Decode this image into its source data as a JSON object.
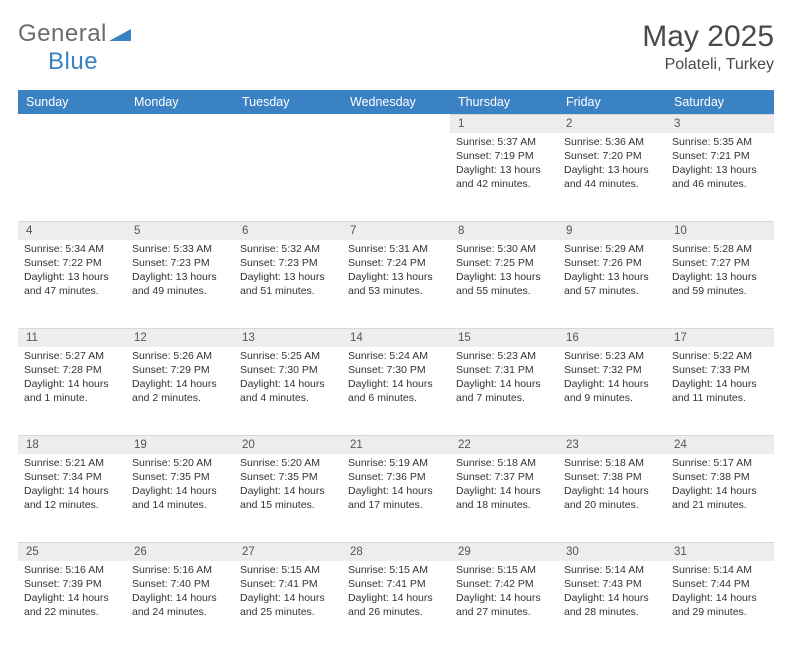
{
  "brand": {
    "first": "General",
    "second": "Blue"
  },
  "title": "May 2025",
  "location": "Polateli, Turkey",
  "columns": [
    "Sunday",
    "Monday",
    "Tuesday",
    "Wednesday",
    "Thursday",
    "Friday",
    "Saturday"
  ],
  "colors": {
    "header_bg": "#3b82c4",
    "header_text": "#ffffff",
    "daynum_bg": "#ededed",
    "text": "#333333",
    "logo_gray": "#6b6b6b",
    "logo_blue": "#3b82c4"
  },
  "weeks": [
    [
      null,
      null,
      null,
      null,
      {
        "n": "1",
        "sr": "5:37 AM",
        "ss": "7:19 PM",
        "dl": "13 hours and 42 minutes."
      },
      {
        "n": "2",
        "sr": "5:36 AM",
        "ss": "7:20 PM",
        "dl": "13 hours and 44 minutes."
      },
      {
        "n": "3",
        "sr": "5:35 AM",
        "ss": "7:21 PM",
        "dl": "13 hours and 46 minutes."
      }
    ],
    [
      {
        "n": "4",
        "sr": "5:34 AM",
        "ss": "7:22 PM",
        "dl": "13 hours and 47 minutes."
      },
      {
        "n": "5",
        "sr": "5:33 AM",
        "ss": "7:23 PM",
        "dl": "13 hours and 49 minutes."
      },
      {
        "n": "6",
        "sr": "5:32 AM",
        "ss": "7:23 PM",
        "dl": "13 hours and 51 minutes."
      },
      {
        "n": "7",
        "sr": "5:31 AM",
        "ss": "7:24 PM",
        "dl": "13 hours and 53 minutes."
      },
      {
        "n": "8",
        "sr": "5:30 AM",
        "ss": "7:25 PM",
        "dl": "13 hours and 55 minutes."
      },
      {
        "n": "9",
        "sr": "5:29 AM",
        "ss": "7:26 PM",
        "dl": "13 hours and 57 minutes."
      },
      {
        "n": "10",
        "sr": "5:28 AM",
        "ss": "7:27 PM",
        "dl": "13 hours and 59 minutes."
      }
    ],
    [
      {
        "n": "11",
        "sr": "5:27 AM",
        "ss": "7:28 PM",
        "dl": "14 hours and 1 minute."
      },
      {
        "n": "12",
        "sr": "5:26 AM",
        "ss": "7:29 PM",
        "dl": "14 hours and 2 minutes."
      },
      {
        "n": "13",
        "sr": "5:25 AM",
        "ss": "7:30 PM",
        "dl": "14 hours and 4 minutes."
      },
      {
        "n": "14",
        "sr": "5:24 AM",
        "ss": "7:30 PM",
        "dl": "14 hours and 6 minutes."
      },
      {
        "n": "15",
        "sr": "5:23 AM",
        "ss": "7:31 PM",
        "dl": "14 hours and 7 minutes."
      },
      {
        "n": "16",
        "sr": "5:23 AM",
        "ss": "7:32 PM",
        "dl": "14 hours and 9 minutes."
      },
      {
        "n": "17",
        "sr": "5:22 AM",
        "ss": "7:33 PM",
        "dl": "14 hours and 11 minutes."
      }
    ],
    [
      {
        "n": "18",
        "sr": "5:21 AM",
        "ss": "7:34 PM",
        "dl": "14 hours and 12 minutes."
      },
      {
        "n": "19",
        "sr": "5:20 AM",
        "ss": "7:35 PM",
        "dl": "14 hours and 14 minutes."
      },
      {
        "n": "20",
        "sr": "5:20 AM",
        "ss": "7:35 PM",
        "dl": "14 hours and 15 minutes."
      },
      {
        "n": "21",
        "sr": "5:19 AM",
        "ss": "7:36 PM",
        "dl": "14 hours and 17 minutes."
      },
      {
        "n": "22",
        "sr": "5:18 AM",
        "ss": "7:37 PM",
        "dl": "14 hours and 18 minutes."
      },
      {
        "n": "23",
        "sr": "5:18 AM",
        "ss": "7:38 PM",
        "dl": "14 hours and 20 minutes."
      },
      {
        "n": "24",
        "sr": "5:17 AM",
        "ss": "7:38 PM",
        "dl": "14 hours and 21 minutes."
      }
    ],
    [
      {
        "n": "25",
        "sr": "5:16 AM",
        "ss": "7:39 PM",
        "dl": "14 hours and 22 minutes."
      },
      {
        "n": "26",
        "sr": "5:16 AM",
        "ss": "7:40 PM",
        "dl": "14 hours and 24 minutes."
      },
      {
        "n": "27",
        "sr": "5:15 AM",
        "ss": "7:41 PM",
        "dl": "14 hours and 25 minutes."
      },
      {
        "n": "28",
        "sr": "5:15 AM",
        "ss": "7:41 PM",
        "dl": "14 hours and 26 minutes."
      },
      {
        "n": "29",
        "sr": "5:15 AM",
        "ss": "7:42 PM",
        "dl": "14 hours and 27 minutes."
      },
      {
        "n": "30",
        "sr": "5:14 AM",
        "ss": "7:43 PM",
        "dl": "14 hours and 28 minutes."
      },
      {
        "n": "31",
        "sr": "5:14 AM",
        "ss": "7:44 PM",
        "dl": "14 hours and 29 minutes."
      }
    ]
  ],
  "labels": {
    "sunrise": "Sunrise: ",
    "sunset": "Sunset: ",
    "daylight": "Daylight: "
  }
}
